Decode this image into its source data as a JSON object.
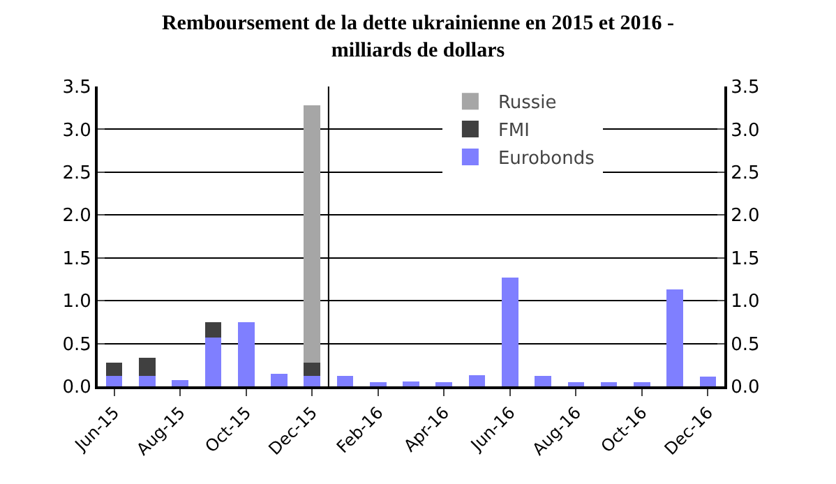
{
  "chart_data": {
    "type": "bar",
    "title": "Remboursement de la dette ukrainienne en 2015 et 2016 -\nmilliards de dollars",
    "categories": [
      "Jun-15",
      null,
      "Aug-15",
      null,
      "Oct-15",
      null,
      "Dec-15",
      null,
      "Feb-16",
      null,
      "Apr-16",
      null,
      "Jun-16",
      null,
      "Aug-16",
      null,
      "Oct-16",
      null,
      "Dec-16"
    ],
    "stacked": true,
    "series": [
      {
        "name": "Eurobonds",
        "color": "#7f7fff",
        "values": [
          0.12,
          0.12,
          0.07,
          0.57,
          0.75,
          0.15,
          0.12,
          0.12,
          0.05,
          0.06,
          0.05,
          0.13,
          1.27,
          0.12,
          0.05,
          0.05,
          0.05,
          1.13,
          0.11
        ]
      },
      {
        "name": "FMI",
        "color": "#404040",
        "values": [
          0.16,
          0.21,
          null,
          0.18,
          null,
          null,
          0.16,
          null,
          null,
          null,
          null,
          null,
          null,
          null,
          null,
          null,
          null,
          null,
          null
        ]
      },
      {
        "name": "Russie",
        "color": "#a6a6a6",
        "values": [
          null,
          null,
          null,
          null,
          null,
          null,
          3.0,
          null,
          null,
          null,
          null,
          null,
          null,
          null,
          null,
          null,
          null,
          null,
          null
        ]
      }
    ],
    "ylim": [
      0,
      3.5
    ],
    "yticks": [
      {
        "value": 0,
        "label": "0.0"
      },
      {
        "value": 0.5,
        "label": "0.5"
      },
      {
        "value": 1,
        "label": "1.0"
      },
      {
        "value": 1.5,
        "label": "1.5"
      },
      {
        "value": 2,
        "label": "2.0"
      },
      {
        "value": 2.5,
        "label": "2.5"
      },
      {
        "value": 3,
        "label": "3.0"
      },
      {
        "value": 3.5,
        "label": "3.5"
      }
    ],
    "y2lim": [
      0,
      3.5
    ],
    "y2ticks": [
      {
        "value": 0,
        "label": "0.0"
      },
      {
        "value": 0.5,
        "label": "0.5"
      },
      {
        "value": 1,
        "label": "1.0"
      },
      {
        "value": 1.5,
        "label": "1.5"
      },
      {
        "value": 2,
        "label": "2.0"
      },
      {
        "value": 2.5,
        "label": "2.5"
      },
      {
        "value": 3,
        "label": "3.0"
      },
      {
        "value": 3.5,
        "label": "3.5"
      }
    ],
    "grid": "y",
    "legend": "top"
  }
}
